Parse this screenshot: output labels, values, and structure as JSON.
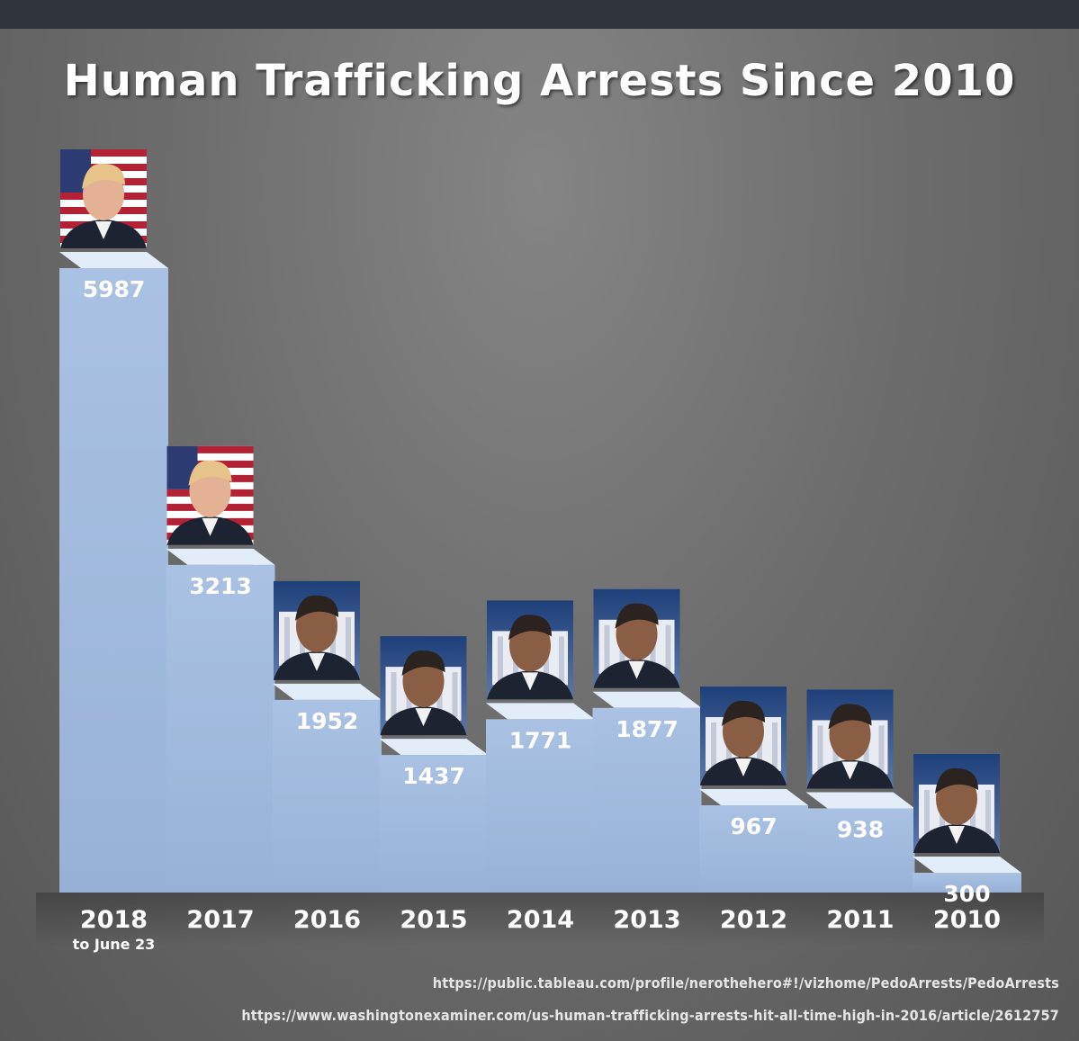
{
  "title": "Human Trafficking Arrests Since 2010",
  "sources": [
    "https://public.tableau.com/profile/nerothehero#!/vizhome/PedoArrests/PedoArrests",
    "https://www.washingtonexaminer.com/us-human-trafficking-arrests-hit-all-time-high-in-2016/article/2612757"
  ],
  "chart_data": {
    "type": "bar",
    "title": "Human Trafficking Arrests Since 2010",
    "categories": [
      "2018",
      "2017",
      "2016",
      "2015",
      "2014",
      "2013",
      "2012",
      "2011",
      "2010"
    ],
    "category_sublabels": [
      "to June 23",
      "",
      "",
      "",
      "",
      "",
      "",
      "",
      ""
    ],
    "values": [
      5987,
      3213,
      1952,
      1437,
      1771,
      1877,
      967,
      938,
      300
    ],
    "value_labels": [
      "5987",
      "3213",
      "1952",
      "1437",
      "1771",
      "1877",
      "967",
      "938",
      "300"
    ],
    "portraits": [
      "trump",
      "trump",
      "obama",
      "obama",
      "obama",
      "obama",
      "obama",
      "obama",
      "obama"
    ],
    "xlabel": "",
    "ylabel": "",
    "grid": false,
    "legend": "none",
    "colors": {
      "bar_front": "#a9c2e3",
      "bar_top": "#e3edf9",
      "bar_side": "#7f97b9",
      "text": "#ffffff",
      "suit": "#1d2330",
      "flag_red": "#b22234",
      "flag_blue": "#2c3c73",
      "whitehouse_sky": "#1f3f7a"
    }
  }
}
